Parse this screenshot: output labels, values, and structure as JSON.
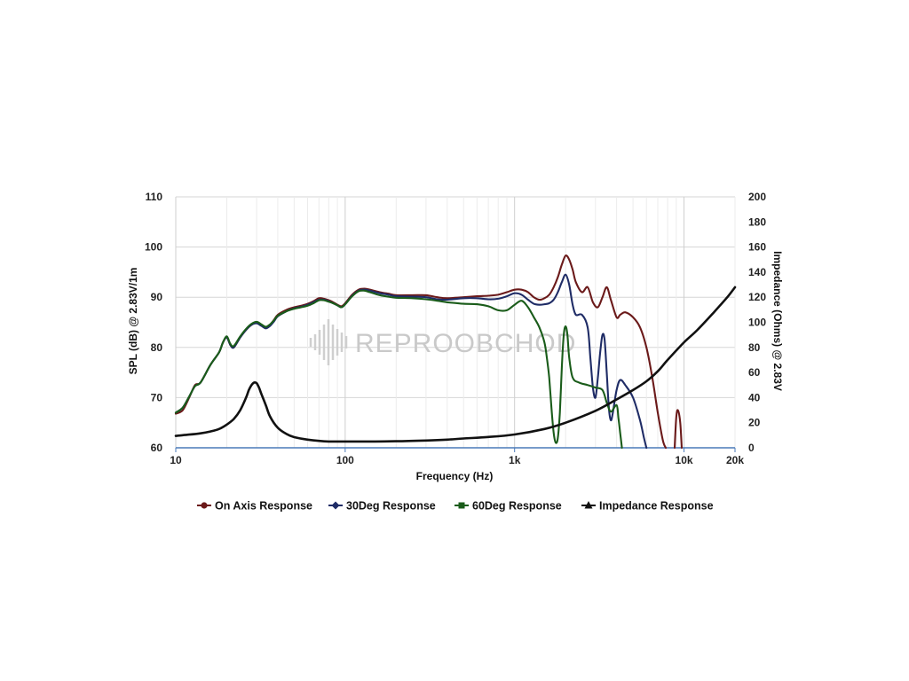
{
  "watermark": "REPROOBCHOD",
  "chart_data": {
    "type": "line",
    "xlabel": "Frequency (Hz)",
    "ylabel": "SPL (dB) @ 2.83V/1m",
    "y2label": "Impedance (Ohms) @ 2.83V",
    "x_scale": "log",
    "xlim": [
      10,
      20000
    ],
    "ylim": [
      60,
      110
    ],
    "y2lim": [
      0,
      200
    ],
    "x_ticks": [
      {
        "value": 10,
        "label": "10"
      },
      {
        "value": 100,
        "label": "100"
      },
      {
        "value": 1000,
        "label": "1k"
      },
      {
        "value": 10000,
        "label": "10k"
      },
      {
        "value": 20000,
        "label": "20k"
      }
    ],
    "y_ticks": [
      60,
      70,
      80,
      90,
      100,
      110
    ],
    "y2_ticks": [
      0,
      20,
      40,
      60,
      80,
      100,
      120,
      140,
      160,
      180,
      200
    ],
    "grid": "on",
    "legend_position": "bottom",
    "series": [
      {
        "name": "On Axis Response",
        "color": "#6b1a1a",
        "marker": "circle",
        "axis": "left",
        "points": [
          [
            10,
            66.8
          ],
          [
            11,
            67.5
          ],
          [
            12,
            70
          ],
          [
            13,
            72.5
          ],
          [
            14,
            73
          ],
          [
            16,
            76.5
          ],
          [
            18,
            79
          ],
          [
            19,
            81
          ],
          [
            20,
            82
          ],
          [
            21,
            80.5
          ],
          [
            22,
            80
          ],
          [
            24,
            82
          ],
          [
            26,
            83.5
          ],
          [
            28,
            84.5
          ],
          [
            30,
            85
          ],
          [
            32,
            84.5
          ],
          [
            34,
            84
          ],
          [
            36,
            84.5
          ],
          [
            38,
            85.5
          ],
          [
            40,
            86.5
          ],
          [
            45,
            87.5
          ],
          [
            50,
            88
          ],
          [
            55,
            88.3
          ],
          [
            60,
            88.7
          ],
          [
            65,
            89.2
          ],
          [
            70,
            89.8
          ],
          [
            75,
            89.7
          ],
          [
            80,
            89.4
          ],
          [
            85,
            89
          ],
          [
            90,
            88.5
          ],
          [
            95,
            88.2
          ],
          [
            100,
            88.8
          ],
          [
            110,
            90.5
          ],
          [
            120,
            91.5
          ],
          [
            130,
            91.7
          ],
          [
            140,
            91.5
          ],
          [
            160,
            91
          ],
          [
            180,
            90.7
          ],
          [
            200,
            90.4
          ],
          [
            250,
            90.4
          ],
          [
            300,
            90.4
          ],
          [
            350,
            90
          ],
          [
            400,
            89.8
          ],
          [
            500,
            90
          ],
          [
            600,
            90.2
          ],
          [
            700,
            90.3
          ],
          [
            800,
            90.5
          ],
          [
            900,
            91
          ],
          [
            1000,
            91.5
          ],
          [
            1100,
            91.5
          ],
          [
            1200,
            91
          ],
          [
            1300,
            90
          ],
          [
            1400,
            89.5
          ],
          [
            1500,
            89.8
          ],
          [
            1600,
            90.5
          ],
          [
            1700,
            92
          ],
          [
            1800,
            94
          ],
          [
            1900,
            96.5
          ],
          [
            2000,
            98.3
          ],
          [
            2100,
            97.5
          ],
          [
            2200,
            95.5
          ],
          [
            2300,
            93
          ],
          [
            2500,
            91
          ],
          [
            2700,
            92
          ],
          [
            2900,
            89
          ],
          [
            3100,
            88
          ],
          [
            3300,
            90
          ],
          [
            3500,
            92
          ],
          [
            3700,
            89.5
          ],
          [
            4000,
            86
          ],
          [
            4200,
            86.5
          ],
          [
            4500,
            87
          ],
          [
            5000,
            86
          ],
          [
            5500,
            84
          ],
          [
            6000,
            80
          ],
          [
            6500,
            74
          ],
          [
            7000,
            67
          ],
          [
            7500,
            61.5
          ],
          [
            7800,
            60
          ]
        ]
      },
      {
        "name": "On Axis Response (segment)",
        "color": "#6b1a1a",
        "axis": "left",
        "legend": false,
        "points": [
          [
            8800,
            60
          ],
          [
            9000,
            66
          ],
          [
            9200,
            67.5
          ],
          [
            9500,
            65
          ],
          [
            9700,
            60
          ]
        ]
      },
      {
        "name": "30Deg Response",
        "color": "#1f2c66",
        "marker": "diamond",
        "axis": "left",
        "points": [
          [
            10,
            67
          ],
          [
            11,
            68
          ],
          [
            12,
            70.2
          ],
          [
            13,
            72.3
          ],
          [
            14,
            73
          ],
          [
            16,
            76.5
          ],
          [
            18,
            79
          ],
          [
            19,
            81
          ],
          [
            20,
            82
          ],
          [
            21,
            80.5
          ],
          [
            22,
            80
          ],
          [
            24,
            82
          ],
          [
            26,
            83.5
          ],
          [
            28,
            84.5
          ],
          [
            30,
            84.8
          ],
          [
            32,
            84.3
          ],
          [
            34,
            83.8
          ],
          [
            36,
            84.3
          ],
          [
            38,
            85.2
          ],
          [
            40,
            86.2
          ],
          [
            45,
            87.2
          ],
          [
            50,
            87.8
          ],
          [
            55,
            88.1
          ],
          [
            60,
            88.5
          ],
          [
            65,
            89
          ],
          [
            70,
            89.5
          ],
          [
            75,
            89.5
          ],
          [
            80,
            89.2
          ],
          [
            85,
            88.8
          ],
          [
            90,
            88.4
          ],
          [
            95,
            88
          ],
          [
            100,
            88.6
          ],
          [
            110,
            90.3
          ],
          [
            120,
            91.3
          ],
          [
            130,
            91.5
          ],
          [
            140,
            91.3
          ],
          [
            160,
            90.8
          ],
          [
            180,
            90.5
          ],
          [
            200,
            90.2
          ],
          [
            250,
            90.1
          ],
          [
            300,
            90
          ],
          [
            350,
            89.6
          ],
          [
            400,
            89.5
          ],
          [
            500,
            89.8
          ],
          [
            600,
            89.8
          ],
          [
            700,
            89.6
          ],
          [
            800,
            89.7
          ],
          [
            900,
            90.2
          ],
          [
            1000,
            90.8
          ],
          [
            1100,
            90.5
          ],
          [
            1200,
            89.5
          ],
          [
            1300,
            88.7
          ],
          [
            1400,
            88.5
          ],
          [
            1500,
            88.6
          ],
          [
            1600,
            88.8
          ],
          [
            1700,
            89.5
          ],
          [
            1800,
            91
          ],
          [
            1900,
            93
          ],
          [
            2000,
            94.5
          ],
          [
            2100,
            92.5
          ],
          [
            2200,
            88.5
          ],
          [
            2300,
            86.5
          ],
          [
            2500,
            86.5
          ],
          [
            2700,
            84
          ],
          [
            2800,
            78
          ],
          [
            2900,
            72
          ],
          [
            3000,
            70
          ],
          [
            3100,
            74
          ],
          [
            3200,
            79
          ],
          [
            3300,
            82.5
          ],
          [
            3400,
            81.5
          ],
          [
            3500,
            75
          ],
          [
            3600,
            68
          ],
          [
            3700,
            65.5
          ],
          [
            3800,
            67
          ],
          [
            4000,
            71.5
          ],
          [
            4200,
            73.5
          ],
          [
            4500,
            72.5
          ],
          [
            5000,
            70
          ],
          [
            5500,
            65.5
          ],
          [
            5800,
            62
          ],
          [
            6000,
            60
          ]
        ]
      },
      {
        "name": "60Deg Response",
        "color": "#1a5c1a",
        "marker": "square",
        "axis": "left",
        "points": [
          [
            10,
            67
          ],
          [
            11,
            68
          ],
          [
            12,
            70.2
          ],
          [
            13,
            72.3
          ],
          [
            14,
            73
          ],
          [
            16,
            76.5
          ],
          [
            18,
            79
          ],
          [
            19,
            81
          ],
          [
            20,
            82.2
          ],
          [
            21,
            80.7
          ],
          [
            22,
            80.3
          ],
          [
            24,
            82.2
          ],
          [
            26,
            83.7
          ],
          [
            28,
            84.7
          ],
          [
            30,
            85.1
          ],
          [
            32,
            84.6
          ],
          [
            34,
            84.1
          ],
          [
            36,
            84.6
          ],
          [
            38,
            85.4
          ],
          [
            40,
            86.3
          ],
          [
            45,
            87.2
          ],
          [
            50,
            87.7
          ],
          [
            55,
            88
          ],
          [
            60,
            88.3
          ],
          [
            65,
            88.8
          ],
          [
            70,
            89.4
          ],
          [
            75,
            89.4
          ],
          [
            80,
            89.1
          ],
          [
            85,
            88.8
          ],
          [
            90,
            88.4
          ],
          [
            95,
            88
          ],
          [
            100,
            88.6
          ],
          [
            110,
            90.2
          ],
          [
            120,
            91.2
          ],
          [
            130,
            91.3
          ],
          [
            140,
            91
          ],
          [
            160,
            90.4
          ],
          [
            180,
            90.1
          ],
          [
            200,
            89.9
          ],
          [
            250,
            89.8
          ],
          [
            300,
            89.6
          ],
          [
            350,
            89.3
          ],
          [
            400,
            89
          ],
          [
            500,
            88.7
          ],
          [
            600,
            88.6
          ],
          [
            700,
            88.2
          ],
          [
            800,
            87.4
          ],
          [
            900,
            87.4
          ],
          [
            1000,
            88.5
          ],
          [
            1100,
            89.3
          ],
          [
            1200,
            88
          ],
          [
            1300,
            86
          ],
          [
            1400,
            84
          ],
          [
            1500,
            81
          ],
          [
            1550,
            78
          ],
          [
            1600,
            74
          ],
          [
            1650,
            68
          ],
          [
            1700,
            63
          ],
          [
            1750,
            61
          ],
          [
            1800,
            62
          ],
          [
            1850,
            67
          ],
          [
            1900,
            76
          ],
          [
            1950,
            82.5
          ],
          [
            2000,
            84.2
          ],
          [
            2050,
            82.5
          ],
          [
            2100,
            78
          ],
          [
            2200,
            74
          ],
          [
            2400,
            73
          ],
          [
            2700,
            72.5
          ],
          [
            3000,
            72
          ],
          [
            3300,
            71.5
          ],
          [
            3500,
            69
          ],
          [
            3700,
            67.2
          ],
          [
            4000,
            68.5
          ],
          [
            4100,
            66
          ],
          [
            4200,
            63
          ],
          [
            4300,
            60
          ]
        ]
      },
      {
        "name": "Impedance Response",
        "color": "#111111",
        "marker": "triangle",
        "axis": "right",
        "points": [
          [
            10,
            9.5
          ],
          [
            12,
            10.5
          ],
          [
            14,
            11.5
          ],
          [
            16,
            13
          ],
          [
            18,
            15
          ],
          [
            20,
            18.5
          ],
          [
            22,
            23
          ],
          [
            24,
            30
          ],
          [
            26,
            40
          ],
          [
            27,
            46
          ],
          [
            28,
            50
          ],
          [
            29,
            52
          ],
          [
            30,
            51.5
          ],
          [
            31,
            48
          ],
          [
            32,
            43
          ],
          [
            34,
            34
          ],
          [
            36,
            25
          ],
          [
            40,
            16
          ],
          [
            45,
            11
          ],
          [
            50,
            8.5
          ],
          [
            60,
            6.5
          ],
          [
            70,
            5.5
          ],
          [
            80,
            5
          ],
          [
            100,
            5
          ],
          [
            150,
            5
          ],
          [
            200,
            5.2
          ],
          [
            300,
            5.8
          ],
          [
            400,
            6.5
          ],
          [
            500,
            7.4
          ],
          [
            700,
            8.6
          ],
          [
            1000,
            10.6
          ],
          [
            1500,
            15
          ],
          [
            2000,
            20
          ],
          [
            3000,
            29.5
          ],
          [
            4000,
            38.5
          ],
          [
            5000,
            46
          ],
          [
            6000,
            53
          ],
          [
            7000,
            61
          ],
          [
            8000,
            70
          ],
          [
            10000,
            84
          ],
          [
            12000,
            94
          ],
          [
            15000,
            108
          ],
          [
            18000,
            120
          ],
          [
            20000,
            128
          ]
        ]
      }
    ]
  }
}
